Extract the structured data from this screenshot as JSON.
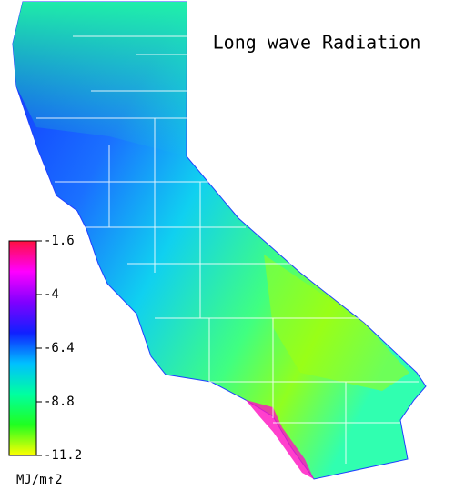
{
  "title": "Long wave Radiation",
  "colorbar": {
    "range": [
      -1.6,
      -11.2
    ],
    "ticks": [
      -1.6,
      -4.0,
      -6.4,
      -8.8,
      -11.2
    ],
    "colors": [
      "#ff1040",
      "#ff00ff",
      "#8000ff",
      "#1020ff",
      "#00c0ff",
      "#00ffa0",
      "#20ff20",
      "#ffff00"
    ],
    "unit": "MJ/m↑2"
  }
}
